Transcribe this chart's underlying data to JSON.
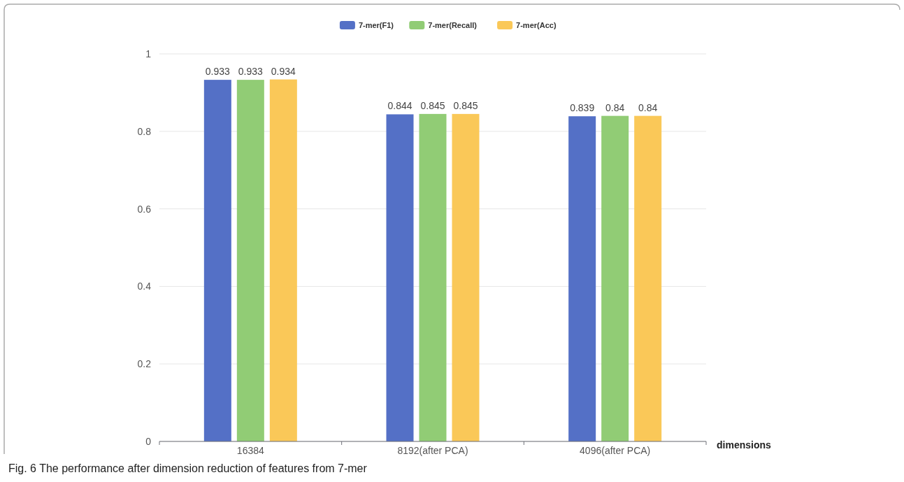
{
  "chart_data": {
    "type": "bar",
    "categories": [
      "16384",
      "8192(after PCA)",
      "4096(after PCA)"
    ],
    "series": [
      {
        "name": "7-mer(F1)",
        "color": "#5470c6",
        "values": [
          0.933,
          0.844,
          0.839
        ]
      },
      {
        "name": "7-mer(Recall)",
        "color": "#91cc75",
        "values": [
          0.933,
          0.845,
          0.84
        ]
      },
      {
        "name": "7-mer(Acc)",
        "color": "#fac858",
        "values": [
          0.934,
          0.845,
          0.84
        ]
      }
    ],
    "xlabel": "dimensions",
    "ylim": [
      0,
      1
    ],
    "yticks": [
      0,
      0.2,
      0.4,
      0.6,
      0.8,
      1
    ],
    "grid": "y",
    "legend": "top",
    "data_labels": true,
    "annotations": [
      "Fig. 6 The performance after dimension reduction of features from 7-mer"
    ]
  }
}
